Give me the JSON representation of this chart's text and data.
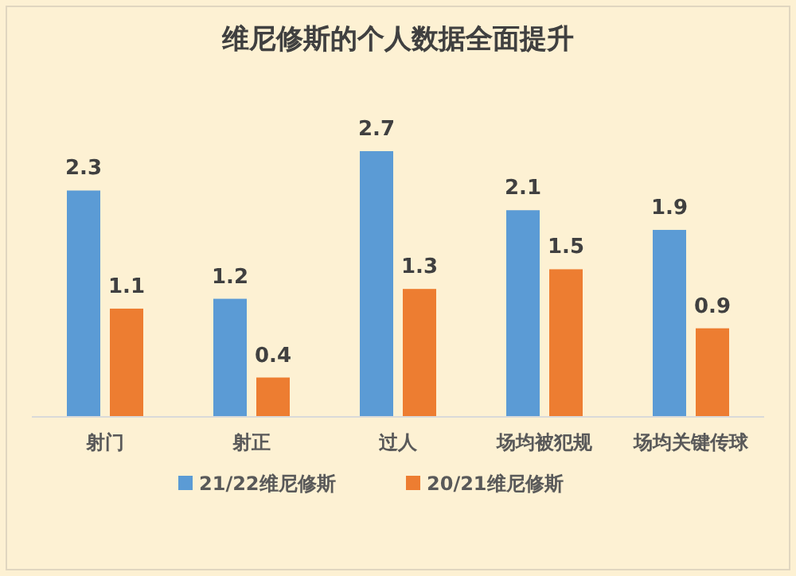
{
  "chart_data": {
    "type": "bar",
    "title": "维尼修斯的个人数据全面提升",
    "categories": [
      "射门",
      "射正",
      "过人",
      "场均被犯规",
      "场均关键传球"
    ],
    "series": [
      {
        "name": "21/22维尼修斯",
        "color": "#5b9bd5",
        "values": [
          2.3,
          1.2,
          2.7,
          2.1,
          1.9
        ]
      },
      {
        "name": "20/21维尼修斯",
        "color": "#ed7d31",
        "values": [
          1.1,
          0.4,
          1.3,
          1.5,
          0.9
        ]
      }
    ],
    "data_labels": true,
    "legend": "bottom"
  }
}
